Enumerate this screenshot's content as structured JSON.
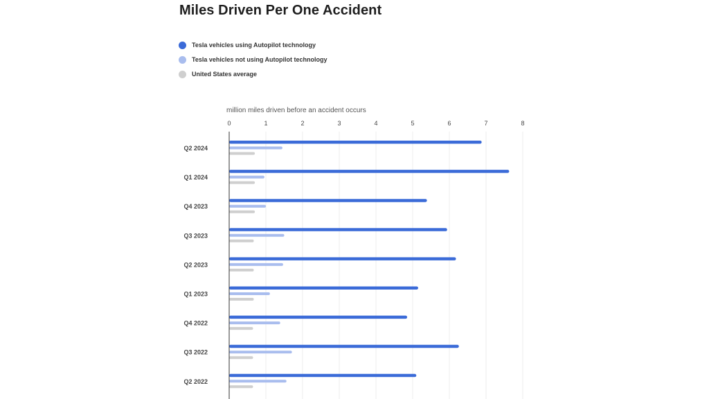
{
  "chart_data": {
    "type": "bar",
    "orientation": "horizontal",
    "title": "Miles Driven Per One Accident",
    "xlabel": "million miles driven before an accident occurs",
    "ylabel": "",
    "xlim": [
      0,
      8
    ],
    "x_ticks": [
      "0",
      "1",
      "2",
      "3",
      "4",
      "5",
      "6",
      "7",
      "8"
    ],
    "grid": true,
    "legend_position": "top-left",
    "categories": [
      "Q2 2024",
      "Q1 2024",
      "Q4 2023",
      "Q3 2023",
      "Q2 2023",
      "Q1 2023",
      "Q4 2022",
      "Q3 2022",
      "Q2 2022"
    ],
    "series": [
      {
        "name": "Tesla vehicles using Autopilot technology",
        "color": "#3b6bd8",
        "values": [
          6.88,
          7.63,
          5.39,
          5.94,
          6.18,
          5.15,
          4.85,
          6.26,
          5.1
        ]
      },
      {
        "name": "Tesla vehicles not using Autopilot technology",
        "color": "#a9bdee",
        "values": [
          1.45,
          0.96,
          1.0,
          1.5,
          1.47,
          1.11,
          1.39,
          1.71,
          1.56
        ]
      },
      {
        "name": "United States average",
        "color": "#cfcfcf",
        "values": [
          0.7,
          0.7,
          0.7,
          0.67,
          0.67,
          0.67,
          0.65,
          0.65,
          0.65
        ]
      }
    ]
  }
}
